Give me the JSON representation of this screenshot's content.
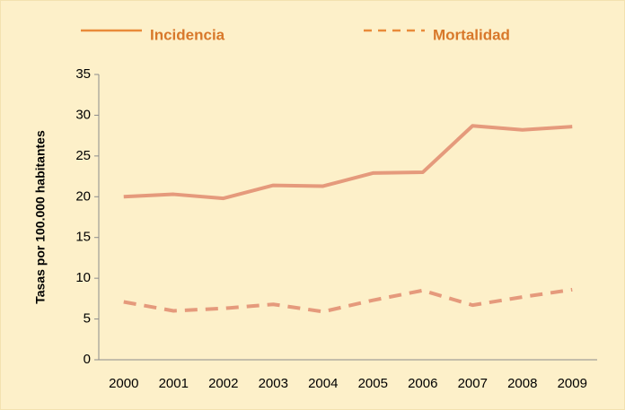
{
  "chart_data": {
    "type": "line",
    "ylabel": "Tasas por 100.000 habitantes",
    "categories": [
      "2000",
      "2001",
      "2002",
      "2003",
      "2004",
      "2005",
      "2006",
      "2007",
      "2008",
      "2009"
    ],
    "series": [
      {
        "name": "Incidencia",
        "color": "#e59a7c",
        "line_style": "solid",
        "values": [
          20.0,
          20.3,
          19.8,
          21.4,
          21.3,
          22.9,
          23.0,
          28.7,
          28.2,
          28.6
        ]
      },
      {
        "name": "Mortalidad",
        "color": "#e59a7c",
        "line_style": "dashed",
        "values": [
          7.1,
          6.0,
          6.3,
          6.8,
          5.9,
          7.3,
          8.5,
          6.7,
          7.7,
          8.6
        ]
      }
    ],
    "legend_color": "#e98b3a",
    "legend_text_color": "#d8782a",
    "ylim": [
      0,
      35
    ],
    "yticks": [
      0,
      5,
      10,
      15,
      20,
      25,
      30,
      35
    ],
    "grid": false
  }
}
